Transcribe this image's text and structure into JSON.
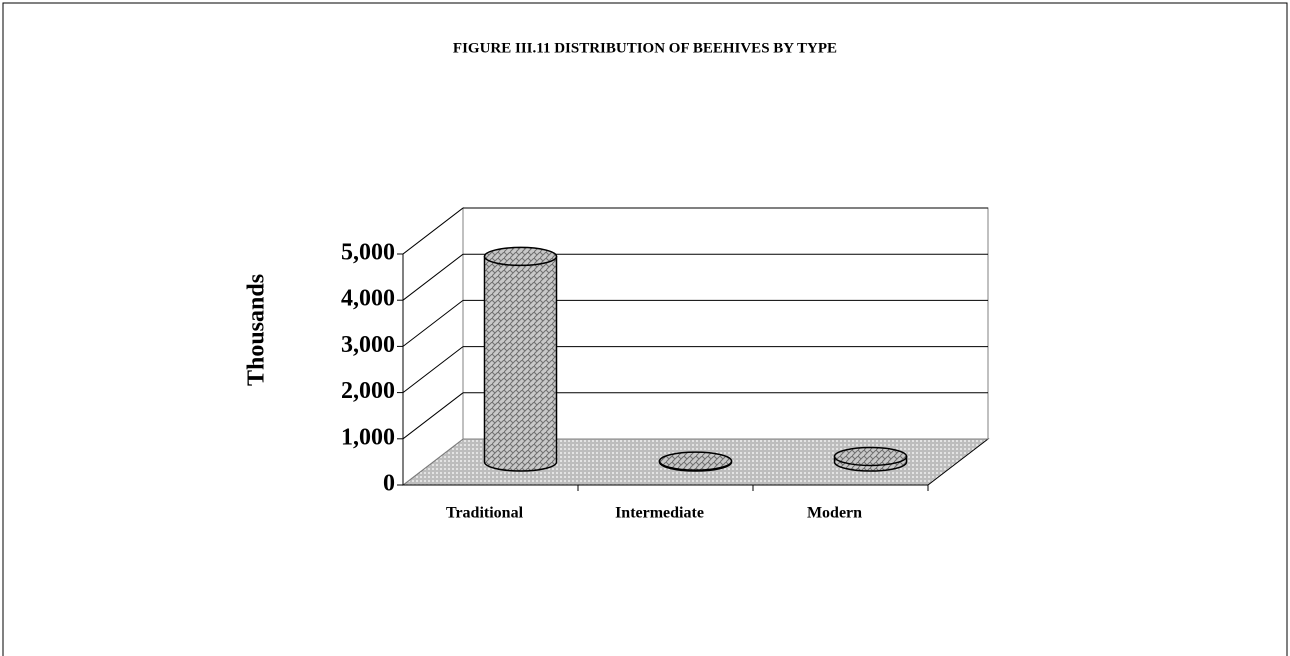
{
  "chart_data": {
    "type": "bar3d-cylinder",
    "title": "FIGURE III.11 DISTRIBUTION OF BEEHIVES BY TYPE",
    "y_label": "Thousands",
    "categories": [
      "Traditional",
      "Intermediate",
      "Modern"
    ],
    "values": [
      4450,
      20,
      120
    ],
    "color": "#b8b8b8",
    "ylim": [
      0,
      5000
    ],
    "yticks": [
      0,
      {
        "value": 1000,
        "label": "1,000"
      },
      {
        "value": 2000,
        "label": "2,000"
      },
      {
        "value": 3000,
        "label": "3,000"
      },
      {
        "value": 4000,
        "label": "4,000"
      },
      {
        "value": 5000,
        "label": "5,000"
      }
    ],
    "grid": true
  }
}
